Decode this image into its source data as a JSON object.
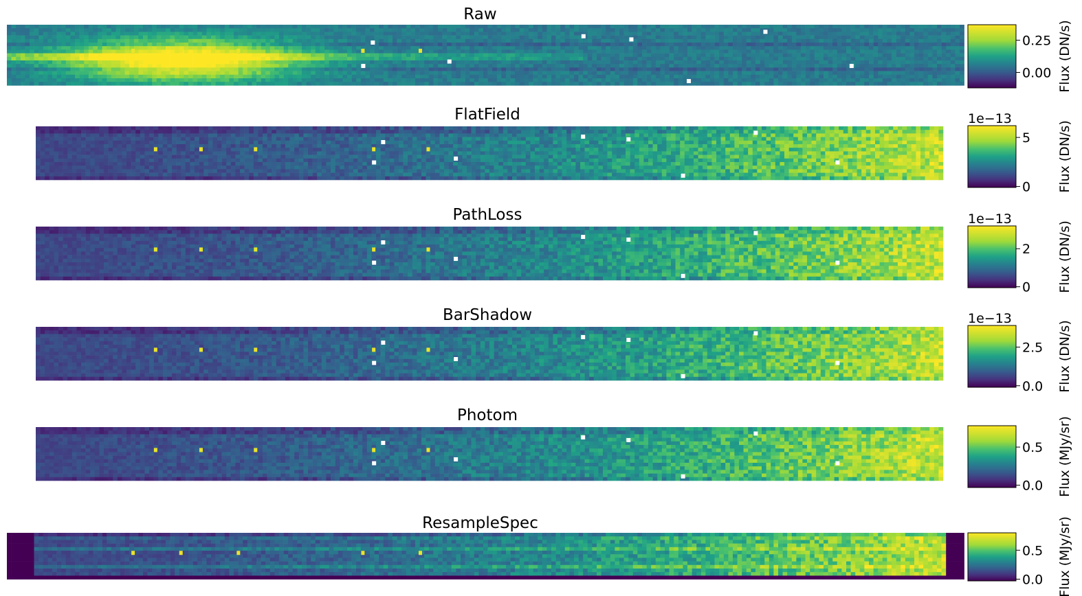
{
  "colormap": "viridis",
  "chart_data": [
    {
      "type": "heatmap",
      "title": "Raw",
      "colorbar": {
        "label": "Flux (DN/s)",
        "ticks": [
          "0.25",
          "0.00"
        ],
        "tick_values": [
          0.25,
          0.0
        ],
        "range": [
          -0.12,
          0.37
        ],
        "exponent": ""
      }
    },
    {
      "type": "heatmap",
      "title": "FlatField",
      "colorbar": {
        "label": "Flux (DN/s)",
        "ticks": [
          "5",
          "0"
        ],
        "tick_values": [
          5,
          0
        ],
        "range": [
          -0.1,
          6.2
        ],
        "exponent": "1e−13"
      }
    },
    {
      "type": "heatmap",
      "title": "PathLoss",
      "colorbar": {
        "label": "Flux (DN/s)",
        "ticks": [
          "2",
          "0"
        ],
        "tick_values": [
          2,
          0
        ],
        "range": [
          -0.05,
          3.2
        ],
        "exponent": "1e−13"
      }
    },
    {
      "type": "heatmap",
      "title": "BarShadow",
      "colorbar": {
        "label": "Flux (DN/s)",
        "ticks": [
          "2.5",
          "0.0"
        ],
        "tick_values": [
          2.5,
          0.0
        ],
        "range": [
          -0.1,
          3.9
        ],
        "exponent": "1e−13"
      }
    },
    {
      "type": "heatmap",
      "title": "Photom",
      "colorbar": {
        "label": "Flux (MJy/sr)",
        "ticks": [
          "0.5",
          "0.0"
        ],
        "tick_values": [
          0.5,
          0.0
        ],
        "range": [
          -0.03,
          0.78
        ],
        "exponent": ""
      }
    },
    {
      "type": "heatmap",
      "title": "ResampleSpec",
      "colorbar": {
        "label": "Flux (MJy/sr)",
        "ticks": [
          "0.5",
          "0.0"
        ],
        "tick_values": [
          0.5,
          0.0
        ],
        "range": [
          -0.03,
          0.8
        ],
        "exponent": ""
      }
    }
  ]
}
